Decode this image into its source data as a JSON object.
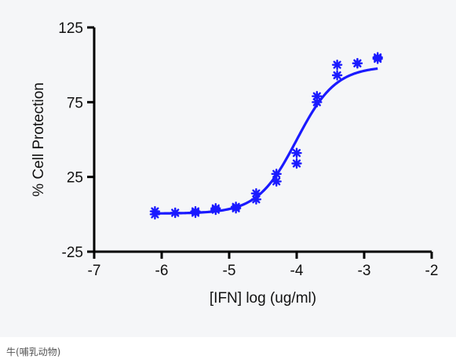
{
  "caption": "牛(哺乳动物)",
  "colors": {
    "series": "#1a1aff",
    "axis": "#000000",
    "panel_bg": "#f5f6f8"
  },
  "chart_data": {
    "type": "scatter",
    "xlabel": "[IFN] log (ug/ml)",
    "ylabel": "% Cell Protection",
    "xlim": [
      -7,
      -2
    ],
    "ylim": [
      -25,
      125
    ],
    "x_ticks": [
      -7,
      -6,
      -5,
      -4,
      -3,
      -2
    ],
    "x_tick_labels": [
      "-7",
      "-6",
      "-5",
      "-4",
      "-3",
      "-2"
    ],
    "y_ticks": [
      -25,
      25,
      75,
      125
    ],
    "y_tick_labels": [
      "-25",
      "25",
      "75",
      "125"
    ],
    "grid": false,
    "series": [
      {
        "marker": "asterisk",
        "points": [
          [
            -6.1,
            2
          ],
          [
            -6.1,
            0
          ],
          [
            -5.8,
            1
          ],
          [
            -5.8,
            1
          ],
          [
            -5.5,
            2
          ],
          [
            -5.5,
            1
          ],
          [
            -5.2,
            4
          ],
          [
            -5.2,
            3
          ],
          [
            -4.9,
            5
          ],
          [
            -4.9,
            4
          ],
          [
            -4.6,
            14
          ],
          [
            -4.6,
            10
          ],
          [
            -4.3,
            27
          ],
          [
            -4.3,
            22
          ],
          [
            -4.0,
            41
          ],
          [
            -4.0,
            34
          ],
          [
            -3.7,
            79
          ],
          [
            -3.7,
            75
          ],
          [
            -3.4,
            100
          ],
          [
            -3.4,
            93
          ],
          [
            -3.1,
            101
          ],
          [
            -3.1,
            101
          ],
          [
            -2.8,
            105
          ],
          [
            -2.8,
            104
          ]
        ],
        "fit": {
          "model": "sigmoidal dose-response",
          "bottom": 0.5,
          "top": 99,
          "logEC50": -4.0,
          "hill": 1.5,
          "x_range": [
            -6.1,
            -2.8
          ]
        }
      }
    ]
  }
}
